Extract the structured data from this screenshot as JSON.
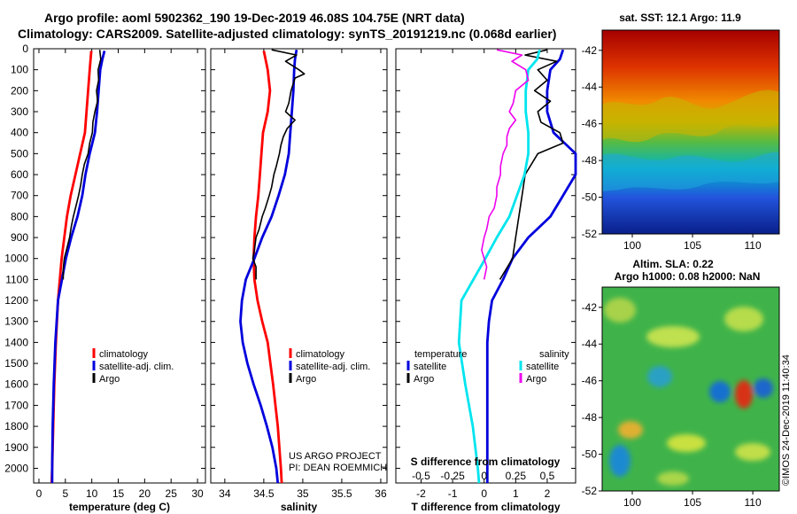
{
  "title_line1": "Argo profile: aoml 5902362_190 19-Dec-2019 46.08S 104.75E (NRT data)",
  "title_line2": "Climatology: CARS2009. Satellite-adjusted climatology: synTS_20191219.nc (0.068d earlier)",
  "credit": "©IMOS 24-Dec-2019 11:40:34",
  "colors": {
    "climatology": "#ff0000",
    "satellite": "#0000dd",
    "argo": "#000000",
    "sat_salinity": "#00e5ee",
    "argo_salinity": "#ee00ee"
  },
  "depth_ticks": [
    "0",
    "100",
    "200",
    "300",
    "400",
    "500",
    "600",
    "700",
    "800",
    "900",
    "1000",
    "1100",
    "1200",
    "1300",
    "1400",
    "1500",
    "1600",
    "1700",
    "1800",
    "1900",
    "2000"
  ],
  "chart_data": [
    {
      "type": "line",
      "name": "temperature-panel",
      "xlabel": "temperature (deg C)",
      "xlim": [
        -1,
        31.5
      ],
      "ylim": [
        2070,
        0
      ],
      "xticks": [
        "0",
        "5",
        "10",
        "15",
        "20",
        "25",
        "30"
      ],
      "xtick_values": [
        0,
        5,
        10,
        15,
        20,
        25,
        30
      ],
      "legend": [
        "climatology",
        "satellite-adj. clim.",
        "Argo"
      ],
      "series": [
        {
          "name": "climatology",
          "color": "red",
          "depth": [
            10,
            100,
            200,
            300,
            400,
            500,
            600,
            700,
            800,
            900,
            1000,
            1200,
            1400,
            1600,
            1800,
            2000,
            2070
          ],
          "values": [
            9.9,
            9.6,
            9.3,
            9.0,
            8.7,
            7.8,
            6.9,
            6.0,
            5.3,
            4.8,
            4.3,
            3.6,
            3.2,
            2.9,
            2.7,
            2.5,
            2.4
          ]
        },
        {
          "name": "satellite-adj. clim.",
          "color": "blue",
          "depth": [
            10,
            50,
            100,
            200,
            300,
            400,
            500,
            600,
            700,
            800,
            900,
            1000,
            1200,
            1400,
            1600,
            1800,
            2000,
            2070
          ],
          "values": [
            12.4,
            12.0,
            11.6,
            11.3,
            11.0,
            10.6,
            9.6,
            8.8,
            8.2,
            7.3,
            6.1,
            5.1,
            3.6,
            3.1,
            2.8,
            2.6,
            2.5,
            2.5
          ]
        },
        {
          "name": "Argo",
          "color": "black",
          "depth": [
            5,
            50,
            100,
            150,
            200,
            250,
            300,
            350,
            400,
            450,
            500,
            550,
            600,
            650,
            700,
            750,
            800,
            850,
            900,
            950,
            1000,
            1050,
            1100
          ],
          "values": [
            11.5,
            11.7,
            11.2,
            11.3,
            10.9,
            11.1,
            10.6,
            10.2,
            10.1,
            9.6,
            9.3,
            8.6,
            8.2,
            7.9,
            7.5,
            7.0,
            6.5,
            6.1,
            5.8,
            5.3,
            4.8,
            4.6,
            4.6
          ]
        }
      ]
    },
    {
      "type": "line",
      "name": "salinity-panel",
      "xlabel": "salinity",
      "xlim": [
        33.82,
        36.08
      ],
      "ylim": [
        2070,
        0
      ],
      "xticks": [
        "34",
        "34.5",
        "35",
        "35.5",
        "36"
      ],
      "xtick_values": [
        34,
        34.5,
        35,
        35.5,
        36
      ],
      "legend": [
        "climatology",
        "satellite-adj. clim.",
        "Argo"
      ],
      "annotation": [
        "US ARGO PROJECT",
        "PI: DEAN ROEMMICH"
      ],
      "series": [
        {
          "name": "climatology",
          "color": "red",
          "depth": [
            10,
            100,
            200,
            300,
            400,
            500,
            600,
            700,
            800,
            900,
            1000,
            1100,
            1200,
            1300,
            1400,
            1600,
            1800,
            2000,
            2070
          ],
          "values": [
            34.5,
            34.55,
            34.58,
            34.55,
            34.49,
            34.47,
            34.45,
            34.43,
            34.4,
            34.38,
            34.37,
            34.38,
            34.42,
            34.48,
            34.55,
            34.62,
            34.68,
            34.72,
            34.73
          ]
        },
        {
          "name": "satellite-adj. clim.",
          "color": "blue",
          "depth": [
            5,
            50,
            100,
            200,
            300,
            400,
            500,
            600,
            700,
            800,
            900,
            1000,
            1100,
            1200,
            1300,
            1400,
            1500,
            1600,
            1700,
            1800,
            1900,
            2000,
            2070
          ],
          "values": [
            34.92,
            34.9,
            34.89,
            34.88,
            34.86,
            34.84,
            34.82,
            34.77,
            34.69,
            34.6,
            34.48,
            34.38,
            34.27,
            34.22,
            34.2,
            34.23,
            34.29,
            34.37,
            34.46,
            34.54,
            34.61,
            34.66,
            34.68
          ]
        },
        {
          "name": "Argo",
          "color": "black",
          "depth": [
            5,
            30,
            60,
            100,
            120,
            140,
            200,
            260,
            300,
            340,
            380,
            420,
            460,
            500,
            560,
            600,
            660,
            700,
            760,
            800,
            860,
            900,
            960,
            1000,
            1040,
            1100
          ],
          "values": [
            34.6,
            34.92,
            34.78,
            34.95,
            35.02,
            34.9,
            34.85,
            34.82,
            34.78,
            34.9,
            34.8,
            34.75,
            34.72,
            34.7,
            34.66,
            34.63,
            34.6,
            34.57,
            34.52,
            34.48,
            34.44,
            34.4,
            34.38,
            34.36,
            34.4,
            34.4
          ]
        }
      ]
    },
    {
      "type": "line",
      "name": "difference-panel",
      "xlabel": "T difference from climatology",
      "xlabel_top": "S difference from climatology",
      "xlim": [
        -2.8,
        2.9
      ],
      "ylim": [
        2070,
        0
      ],
      "xticks": [
        "-2",
        "-1",
        "0",
        "1",
        "2"
      ],
      "xtick_values": [
        -2,
        -1,
        0,
        1,
        2
      ],
      "sticks": [
        "-0.5",
        "-0.25",
        "0",
        "0.25",
        "0.5"
      ],
      "stick_values": [
        -0.5,
        -0.25,
        0,
        0.25,
        0.5
      ],
      "legend_temperature_title": "temperature",
      "legend_salinity_title": "salinity",
      "legend_temperature": [
        "satellite",
        "Argo"
      ],
      "legend_salinity": [
        "satellite",
        "Argo"
      ],
      "series": [
        {
          "name": "T satellite",
          "color": "blue",
          "units": "T",
          "depth": [
            5,
            50,
            100,
            200,
            300,
            400,
            500,
            600,
            700,
            800,
            900,
            1000,
            1100,
            1200,
            1300,
            1400,
            1500,
            1600,
            1700,
            1800,
            1900,
            2000,
            2070
          ],
          "values": [
            2.5,
            2.4,
            2.1,
            2.0,
            2.0,
            2.2,
            2.9,
            2.9,
            2.5,
            2.1,
            1.4,
            0.9,
            0.6,
            0.25,
            0.15,
            0.1,
            0.1,
            0.1,
            0.1,
            0.1,
            0.1,
            0.1,
            0.1
          ]
        },
        {
          "name": "T Argo",
          "color": "black",
          "units": "T",
          "depth": [
            5,
            30,
            60,
            100,
            150,
            200,
            250,
            300,
            350,
            400,
            450,
            500,
            600,
            700,
            800,
            900,
            1000,
            1100
          ],
          "values": [
            2.0,
            1.3,
            2.3,
            1.7,
            2.0,
            1.6,
            2.1,
            1.7,
            1.8,
            2.4,
            2.5,
            1.7,
            1.3,
            1.2,
            1.1,
            1.0,
            0.9,
            0.5
          ]
        },
        {
          "name": "S satellite",
          "color": "cyan",
          "units": "S",
          "depth": [
            5,
            50,
            100,
            200,
            300,
            400,
            500,
            600,
            700,
            800,
            900,
            1000,
            1200,
            1400,
            1600,
            1800,
            2000,
            2070
          ],
          "values": [
            0.44,
            0.42,
            0.35,
            0.33,
            0.33,
            0.35,
            0.35,
            0.32,
            0.26,
            0.2,
            0.1,
            0.01,
            -0.18,
            -0.2,
            -0.15,
            -0.09,
            -0.05,
            -0.04
          ]
        },
        {
          "name": "S Argo",
          "color": "magenta",
          "units": "S",
          "depth": [
            5,
            30,
            60,
            100,
            150,
            200,
            260,
            300,
            340,
            380,
            420,
            460,
            500,
            560,
            600,
            660,
            700,
            760,
            800,
            860,
            900,
            960,
            1000,
            1040,
            1100
          ],
          "values": [
            0.1,
            0.3,
            0.22,
            0.33,
            0.35,
            0.25,
            0.23,
            0.2,
            0.25,
            0.2,
            0.18,
            0.18,
            0.15,
            0.13,
            0.13,
            0.1,
            0.1,
            0.08,
            0.04,
            0.02,
            0.0,
            -0.02,
            0.0,
            0.02,
            0.0
          ]
        }
      ]
    }
  ],
  "sst_map": {
    "title": "sat. SST: 12.1 Argo: 11.9",
    "yticks": [
      "-42",
      "-44",
      "-46",
      "-48",
      "-50",
      "-52"
    ],
    "ytick_values": [
      -42,
      -44,
      -46,
      -48,
      -50,
      -52
    ],
    "xticks": [
      "100",
      "105",
      "110"
    ],
    "xtick_values": [
      100,
      105,
      110
    ],
    "lon_range": [
      97.5,
      112.2
    ],
    "lat_range": [
      -40.9,
      -52
    ]
  },
  "sla_map": {
    "title_line1": "Altim. SLA: 0.22",
    "title_line2": "Argo h1000: 0.08 h2000: NaN",
    "yticks": [
      "-42",
      "-44",
      "-46",
      "-48",
      "-50",
      "-52"
    ],
    "ytick_values": [
      -42,
      -44,
      -46,
      -48,
      -50,
      -52
    ],
    "xticks": [
      "100",
      "105",
      "110"
    ],
    "xtick_values": [
      100,
      105,
      110
    ],
    "lon_range": [
      97.5,
      112.2
    ],
    "lat_range": [
      -40.9,
      -52
    ]
  }
}
